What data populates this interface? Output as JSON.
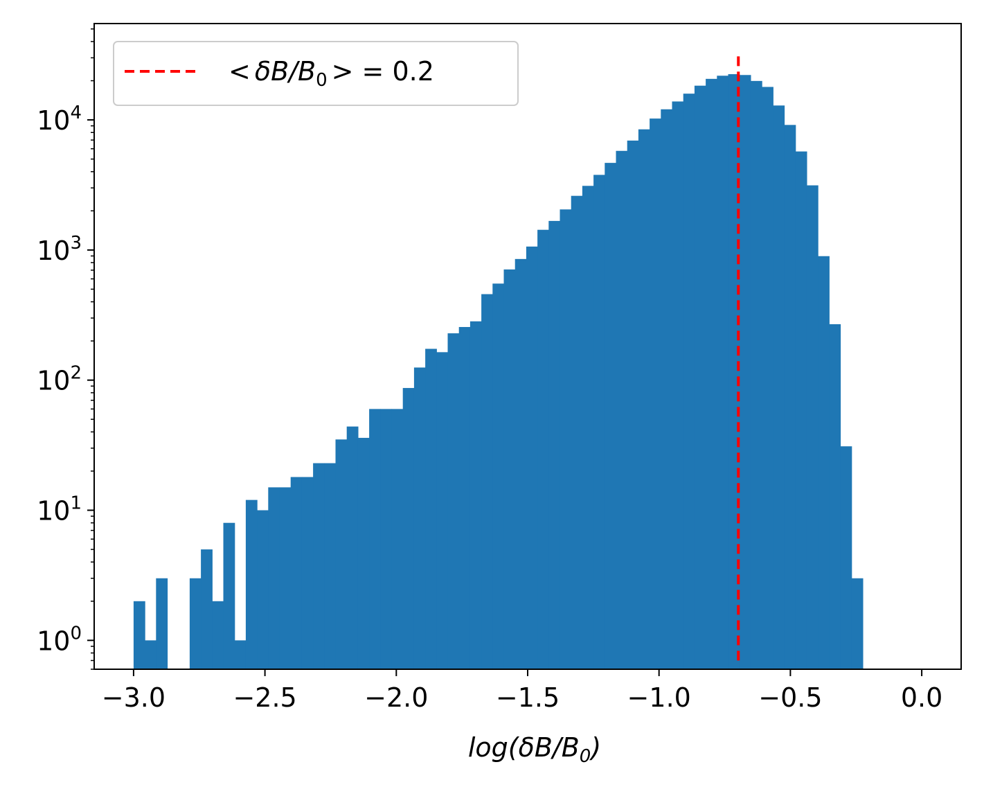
{
  "chart_data": {
    "type": "bar",
    "title": "",
    "xlabel_parts": {
      "prefix": "log(",
      "delta": "δ",
      "b": "B",
      "slash": "/",
      "b0": "B",
      "sub": "0",
      "suffix": ")"
    },
    "ylabel": "",
    "y_scale": "log",
    "xlim": [
      -3.15,
      0.15
    ],
    "ylim": [
      0.6,
      55000
    ],
    "grid": false,
    "x_ticks": [
      {
        "value": -3.0,
        "label": "−3.0"
      },
      {
        "value": -2.5,
        "label": "−2.5"
      },
      {
        "value": -2.0,
        "label": "−2.0"
      },
      {
        "value": -1.5,
        "label": "−1.5"
      },
      {
        "value": -1.0,
        "label": "−1.0"
      },
      {
        "value": -0.5,
        "label": "−0.5"
      },
      {
        "value": 0.0,
        "label": "0.0"
      }
    ],
    "y_ticks": [
      {
        "value": 1,
        "base": "10",
        "exp": "0"
      },
      {
        "value": 10,
        "base": "10",
        "exp": "1"
      },
      {
        "value": 100,
        "base": "10",
        "exp": "2"
      },
      {
        "value": 1000,
        "base": "10",
        "exp": "3"
      },
      {
        "value": 10000,
        "base": "10",
        "exp": "4"
      }
    ],
    "bin_start": -3.0,
    "bin_width": 0.0427,
    "counts": [
      2,
      1,
      3,
      0,
      0,
      3,
      5,
      2,
      8,
      1,
      12,
      10,
      15,
      15,
      18,
      18,
      23,
      23,
      35,
      44,
      36,
      60,
      60,
      60,
      87,
      125,
      174,
      164,
      229,
      256,
      283,
      458,
      552,
      709,
      853,
      1063,
      1430,
      1673,
      2051,
      2608,
      3112,
      3780,
      4673,
      5780,
      6935,
      8462,
      10240,
      12062,
      13855,
      15910,
      18320,
      20670,
      21850,
      22460,
      22130,
      19920,
      17920,
      12900,
      9145,
      5720,
      3140,
      897,
      269,
      31,
      3
    ],
    "bar_color": "#1f77b4",
    "reference_line": {
      "x": -0.698,
      "y_from": 0.7,
      "y_to": 33000,
      "color": "#ff0000",
      "style": "dashed"
    },
    "legend": {
      "location": "upper-left",
      "entries": [
        {
          "symbol": "dashed-line",
          "color": "#ff0000",
          "label_parts": {
            "lt": "<",
            "delta": "δ",
            "b": "B",
            "slash": "/",
            "b0": "B",
            "sub": "0",
            "gt": ">",
            "rest": " = 0.2"
          }
        }
      ]
    }
  }
}
